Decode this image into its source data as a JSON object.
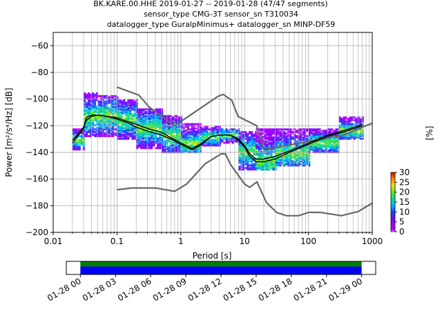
{
  "title_lines": [
    "BK.KARE.00.HHE   2019-01-27 -- 2019-01-28  (47/47 segments)",
    "sensor_type CMG-3T sensor_sn T310034",
    "datalogger_type GuralpMinimus+ datalogger_sn MINP-DF59"
  ],
  "xlabel": "Period [s]",
  "ylabel": "Power [m²/s⁴/Hz] [dB]",
  "cbar_label": "[%]",
  "chart_data": [
    {
      "type": "heatmap",
      "xscale": "log",
      "xlim": [
        0.01,
        1000
      ],
      "ylim": [
        -200,
        -50
      ],
      "x_ticks": [
        0.01,
        0.1,
        1,
        10,
        100,
        1000
      ],
      "x_tick_labels": [
        "0.01",
        "0.1",
        "1",
        "10",
        "100",
        "1000"
      ],
      "y_ticks": [
        -200,
        -180,
        -160,
        -140,
        -120,
        -100,
        -80,
        -60
      ],
      "y_tick_labels": [
        "−200",
        "−180",
        "−160",
        "−140",
        "−120",
        "−100",
        "−80",
        "−60"
      ],
      "grid": true,
      "colorbar": {
        "range": [
          0,
          30
        ],
        "ticks": [
          0,
          5,
          10,
          15,
          20,
          25,
          30
        ],
        "tick_labels": [
          "0",
          "5",
          "10",
          "15",
          "20",
          "25",
          "30"
        ]
      },
      "mean_curve": [
        [
          0.02,
          -133
        ],
        [
          0.025,
          -127
        ],
        [
          0.03,
          -122
        ],
        [
          0.033,
          -114
        ],
        [
          0.04,
          -112
        ],
        [
          0.05,
          -112
        ],
        [
          0.07,
          -113
        ],
        [
          0.1,
          -115
        ],
        [
          0.15,
          -118
        ],
        [
          0.2,
          -121
        ],
        [
          0.3,
          -124
        ],
        [
          0.5,
          -127
        ],
        [
          0.7,
          -130
        ],
        [
          1,
          -134
        ],
        [
          1.5,
          -138
        ],
        [
          2,
          -135
        ],
        [
          3,
          -128
        ],
        [
          4,
          -127
        ],
        [
          5,
          -127
        ],
        [
          6,
          -127
        ],
        [
          8,
          -131
        ],
        [
          10,
          -136
        ],
        [
          12,
          -143
        ],
        [
          15,
          -147
        ],
        [
          20,
          -147
        ],
        [
          30,
          -145
        ],
        [
          50,
          -140
        ],
        [
          100,
          -134
        ],
        [
          200,
          -128
        ],
        [
          400,
          -124
        ],
        [
          700,
          -120
        ]
      ],
      "mode_curve": [
        [
          0.02,
          -131
        ],
        [
          0.025,
          -126
        ],
        [
          0.03,
          -121
        ],
        [
          0.033,
          -116
        ],
        [
          0.04,
          -113
        ],
        [
          0.05,
          -112
        ],
        [
          0.07,
          -113
        ],
        [
          0.1,
          -114
        ],
        [
          0.15,
          -117
        ],
        [
          0.2,
          -119
        ],
        [
          0.3,
          -122
        ],
        [
          0.5,
          -125
        ],
        [
          0.7,
          -129
        ],
        [
          1,
          -133
        ],
        [
          1.5,
          -137
        ],
        [
          2,
          -134
        ],
        [
          3,
          -128
        ],
        [
          4,
          -127
        ],
        [
          5,
          -127
        ],
        [
          6,
          -127
        ],
        [
          8,
          -130
        ],
        [
          10,
          -135
        ],
        [
          12,
          -141
        ],
        [
          15,
          -145
        ],
        [
          20,
          -145
        ],
        [
          30,
          -143
        ],
        [
          50,
          -139
        ],
        [
          100,
          -133
        ],
        [
          200,
          -127
        ],
        [
          400,
          -123
        ],
        [
          700,
          -119
        ]
      ],
      "nhnm": [
        [
          0.1,
          -91
        ],
        [
          0.22,
          -97
        ],
        [
          0.32,
          -106
        ],
        [
          0.8,
          -120
        ],
        [
          3.8,
          -98
        ],
        [
          4.6,
          -96.5
        ],
        [
          6.3,
          -101
        ],
        [
          7.9,
          -113
        ],
        [
          15.4,
          -120
        ],
        [
          20,
          -138
        ],
        [
          354,
          -127
        ],
        [
          1000,
          -118
        ]
      ],
      "nlnm": [
        [
          0.1,
          -168
        ],
        [
          0.17,
          -166.7
        ],
        [
          0.4,
          -166.7
        ],
        [
          0.8,
          -169.2
        ],
        [
          1.24,
          -163.7
        ],
        [
          2.4,
          -148.6
        ],
        [
          4.3,
          -141.1
        ],
        [
          5,
          -141.1
        ],
        [
          6,
          -149
        ],
        [
          10,
          -163.8
        ],
        [
          12,
          -166.2
        ],
        [
          15.6,
          -162.1
        ],
        [
          21.9,
          -177.5
        ],
        [
          31.6,
          -185
        ],
        [
          45,
          -187.5
        ],
        [
          70,
          -187.5
        ],
        [
          101,
          -185
        ],
        [
          154,
          -185
        ],
        [
          328,
          -187.5
        ],
        [
          600,
          -184.4
        ],
        [
          1000,
          -178
        ]
      ],
      "hist_bands": [
        {
          "x": [
            0.02,
            0.03
          ],
          "y": [
            -138,
            -122
          ],
          "peak": -131
        },
        {
          "x": [
            0.03,
            0.05
          ],
          "y": [
            -128,
            -95
          ],
          "peak": -114
        },
        {
          "x": [
            0.05,
            0.1
          ],
          "y": [
            -128,
            -97
          ],
          "peak": -113
        },
        {
          "x": [
            0.1,
            0.2
          ],
          "y": [
            -130,
            -100
          ],
          "peak": -116
        },
        {
          "x": [
            0.2,
            0.5
          ],
          "y": [
            -137,
            -107
          ],
          "peak": -122
        },
        {
          "x": [
            0.5,
            1
          ],
          "y": [
            -140,
            -112
          ],
          "peak": -128
        },
        {
          "x": [
            1,
            2
          ],
          "y": [
            -140,
            -118
          ],
          "peak": -134
        },
        {
          "x": [
            2,
            4
          ],
          "y": [
            -135,
            -120
          ],
          "peak": -129
        },
        {
          "x": [
            4,
            8
          ],
          "y": [
            -133,
            -122
          ],
          "peak": -127
        },
        {
          "x": [
            8,
            15
          ],
          "y": [
            -153,
            -124
          ],
          "peak": -140
        },
        {
          "x": [
            15,
            30
          ],
          "y": [
            -153,
            -122
          ],
          "peak": -146
        },
        {
          "x": [
            30,
            100
          ],
          "y": [
            -150,
            -122
          ],
          "peak": -141
        },
        {
          "x": [
            100,
            300
          ],
          "y": [
            -140,
            -122
          ],
          "peak": -133
        },
        {
          "x": [
            300,
            700
          ],
          "y": [
            -130,
            -113
          ],
          "peak": -124
        }
      ]
    },
    {
      "type": "timeline",
      "x_ticks": [
        "01-28 00",
        "01-28 03",
        "01-28 06",
        "01-28 09",
        "01-28 12",
        "01-28 15",
        "01-28 18",
        "01-28 21",
        "01-29 00"
      ],
      "data_start": "01-28 00",
      "data_end": "01-29 00",
      "range_start_hours": -1.2,
      "range_end_hours": 25.2,
      "bar_colors": [
        "#007f00",
        "#0000ff"
      ]
    }
  ]
}
